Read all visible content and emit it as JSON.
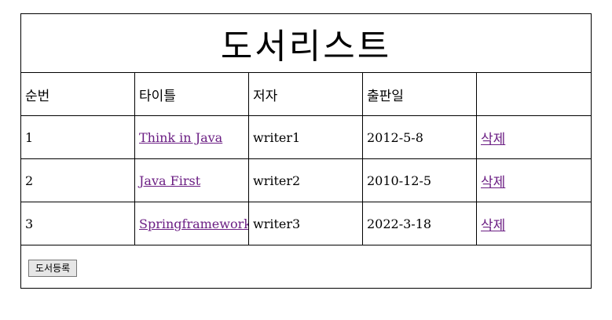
{
  "page_title": "도서리스트",
  "columns": [
    "순번",
    "타이틀",
    "저자",
    "출판일",
    ""
  ],
  "books": [
    {
      "no": "1",
      "title": "Think in Java",
      "author": "writer1",
      "published": "2012-5-8",
      "delete_label": "삭제"
    },
    {
      "no": "2",
      "title": "Java First",
      "author": "writer2",
      "published": "2010-12-5",
      "delete_label": "삭제"
    },
    {
      "no": "3",
      "title": "Springframework",
      "author": "writer3",
      "published": "2022-3-18",
      "delete_label": "삭제"
    }
  ],
  "register_button_label": "도서등록",
  "colors": {
    "link": "#6b1e83",
    "border": "#000000",
    "button_bg": "#e6e6e6"
  }
}
